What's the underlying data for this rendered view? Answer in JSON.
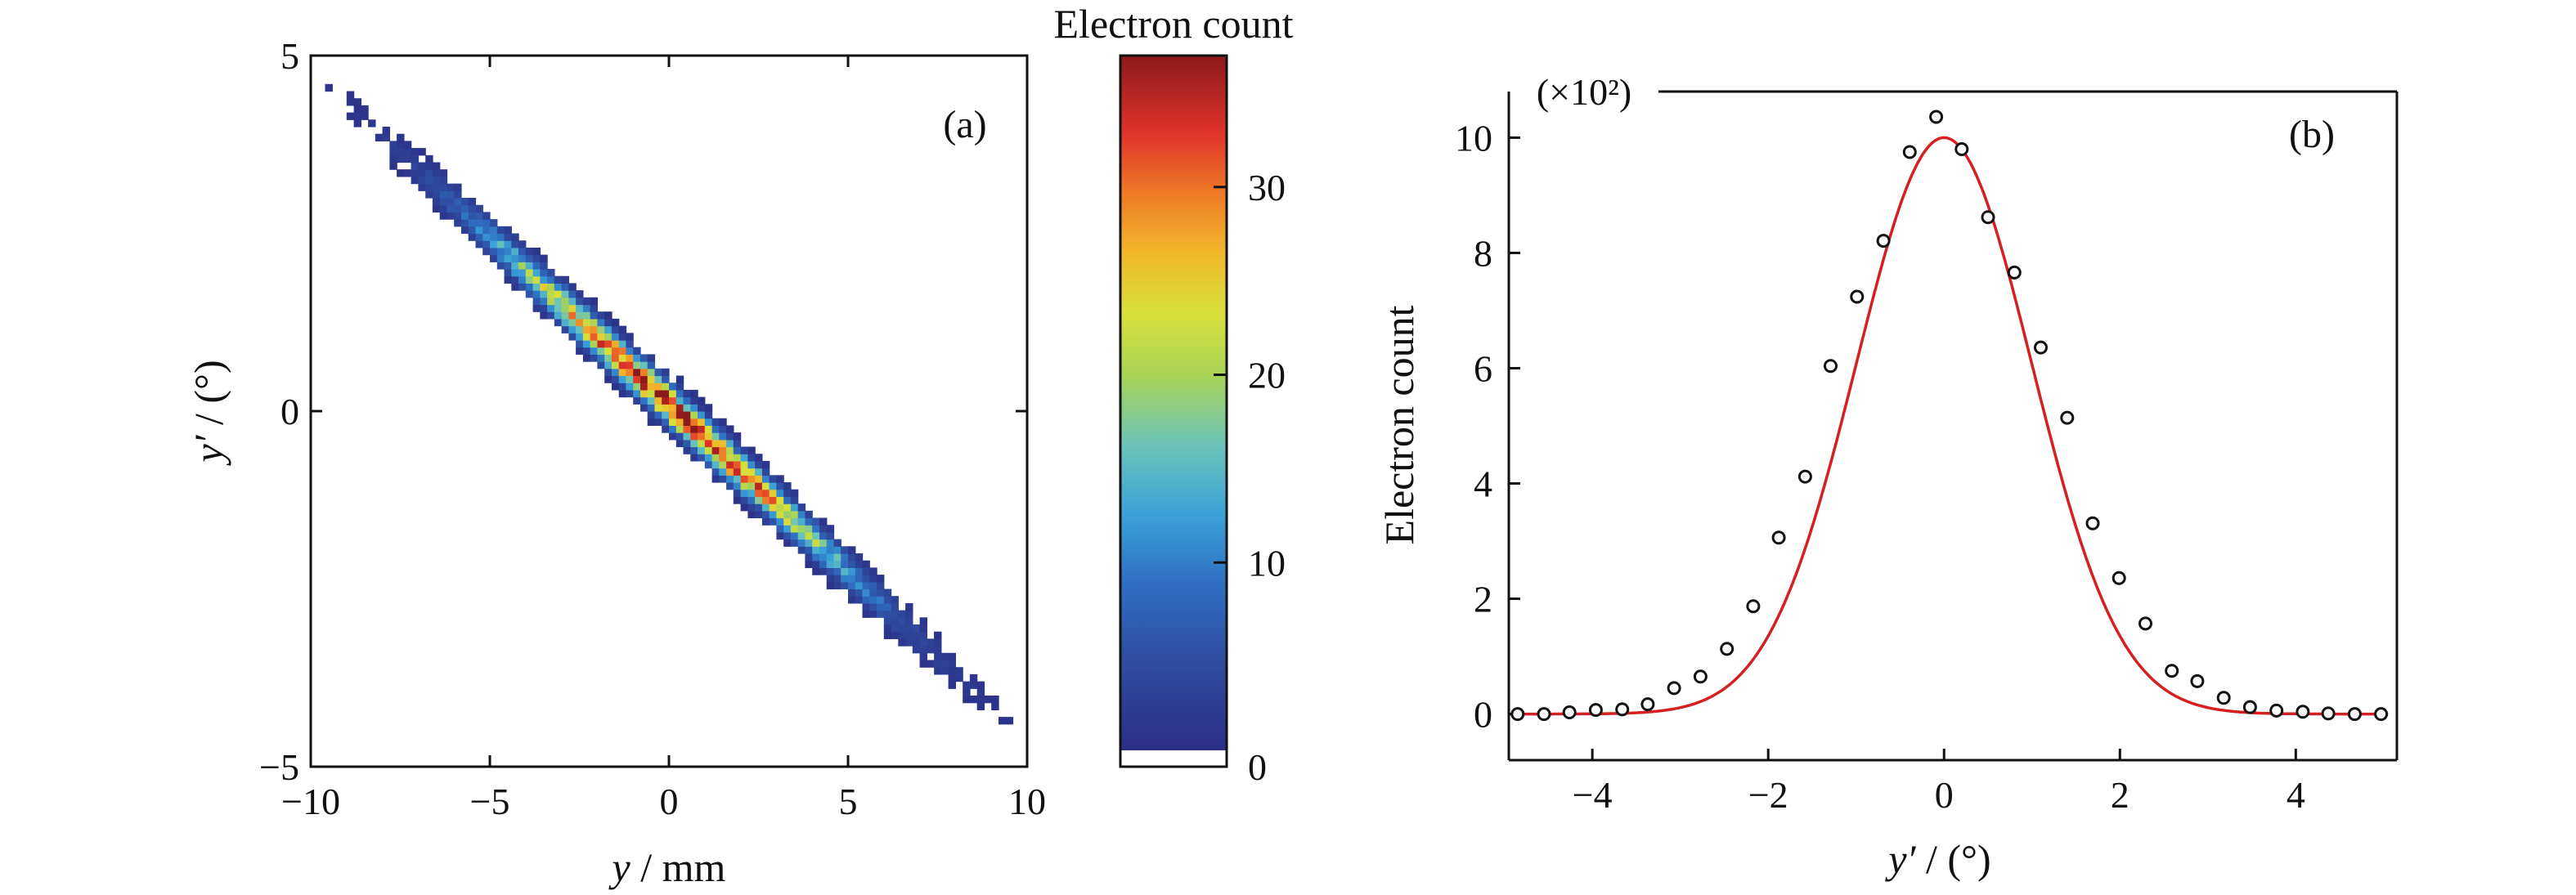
{
  "chart_data": [
    {
      "panel": "(a)",
      "type": "heatmap",
      "xlabel_var": "y",
      "xlabel_unit": " / mm",
      "ylabel_var": "y′",
      "ylabel_unit": " / (°)",
      "xlim": [
        -10,
        10
      ],
      "ylim": [
        -5,
        5
      ],
      "xticks": [
        -10,
        -5,
        0,
        5,
        10
      ],
      "yticks": [
        -5,
        0,
        5
      ],
      "xtick_labels": [
        "−10",
        "−5",
        "0",
        "5",
        "10"
      ],
      "ytick_labels": [
        "−5",
        "0",
        "5"
      ],
      "correlation": {
        "slope_deg_per_mm": -0.47,
        "rms_y_mm": 3.3,
        "rms_yprime_perp_deg": 0.17,
        "peak_count": 36
      },
      "colorbar": {
        "label": "Electron count",
        "range": [
          0,
          37
        ],
        "ticks": [
          0,
          10,
          20,
          30
        ],
        "tick_labels": [
          "0",
          "10",
          "20",
          "30"
        ],
        "colormap": [
          "#ffffff",
          "#2b2f86",
          "#2f5db3",
          "#3a9bd4",
          "#58c1c8",
          "#8fce6a",
          "#d9e03a",
          "#f2a326",
          "#e0322a",
          "#8b1a1a"
        ]
      }
    },
    {
      "panel": "(b)",
      "type": "scatter",
      "xlabel_var": "y′",
      "xlabel_unit": " / (°)",
      "ylabel": "Electron count",
      "y_multiplier_label": "(×10²)",
      "xlim": [
        -4.95,
        5.15
      ],
      "ylim": [
        -0.8,
        10.8
      ],
      "xticks": [
        -4,
        -2,
        0,
        2,
        4
      ],
      "yticks": [
        0,
        2,
        4,
        6,
        8,
        10
      ],
      "xtick_labels": [
        "−4",
        "−2",
        "0",
        "2",
        "4"
      ],
      "ytick_labels": [
        "0",
        "2",
        "4",
        "6",
        "8",
        "10"
      ],
      "series": [
        {
          "marker": "open-circle",
          "x": [
            -4.85,
            -4.55,
            -4.26,
            -3.96,
            -3.66,
            -3.37,
            -3.07,
            -2.77,
            -2.47,
            -2.17,
            -1.88,
            -1.58,
            -1.29,
            -0.99,
            -0.69,
            -0.39,
            -0.09,
            0.2,
            0.5,
            0.8,
            1.1,
            1.4,
            1.69,
            1.99,
            2.29,
            2.59,
            2.88,
            3.18,
            3.48,
            3.78,
            4.08,
            4.37,
            4.67,
            4.97
          ],
          "y": [
            0.0,
            0.0,
            0.03,
            0.07,
            0.08,
            0.17,
            0.45,
            0.65,
            1.13,
            1.87,
            3.06,
            4.12,
            6.04,
            7.24,
            8.21,
            9.75,
            10.36,
            9.8,
            8.62,
            7.66,
            6.36,
            5.14,
            3.31,
            2.36,
            1.57,
            0.75,
            0.57,
            0.28,
            0.12,
            0.06,
            0.04,
            0.01,
            0.0,
            0.0
          ]
        },
        {
          "marker": "line",
          "color": "#d42020",
          "fit": {
            "kind": "gaussian",
            "amplitude": 10.0,
            "center": 0.0,
            "sigma": 1.0
          }
        }
      ]
    }
  ]
}
